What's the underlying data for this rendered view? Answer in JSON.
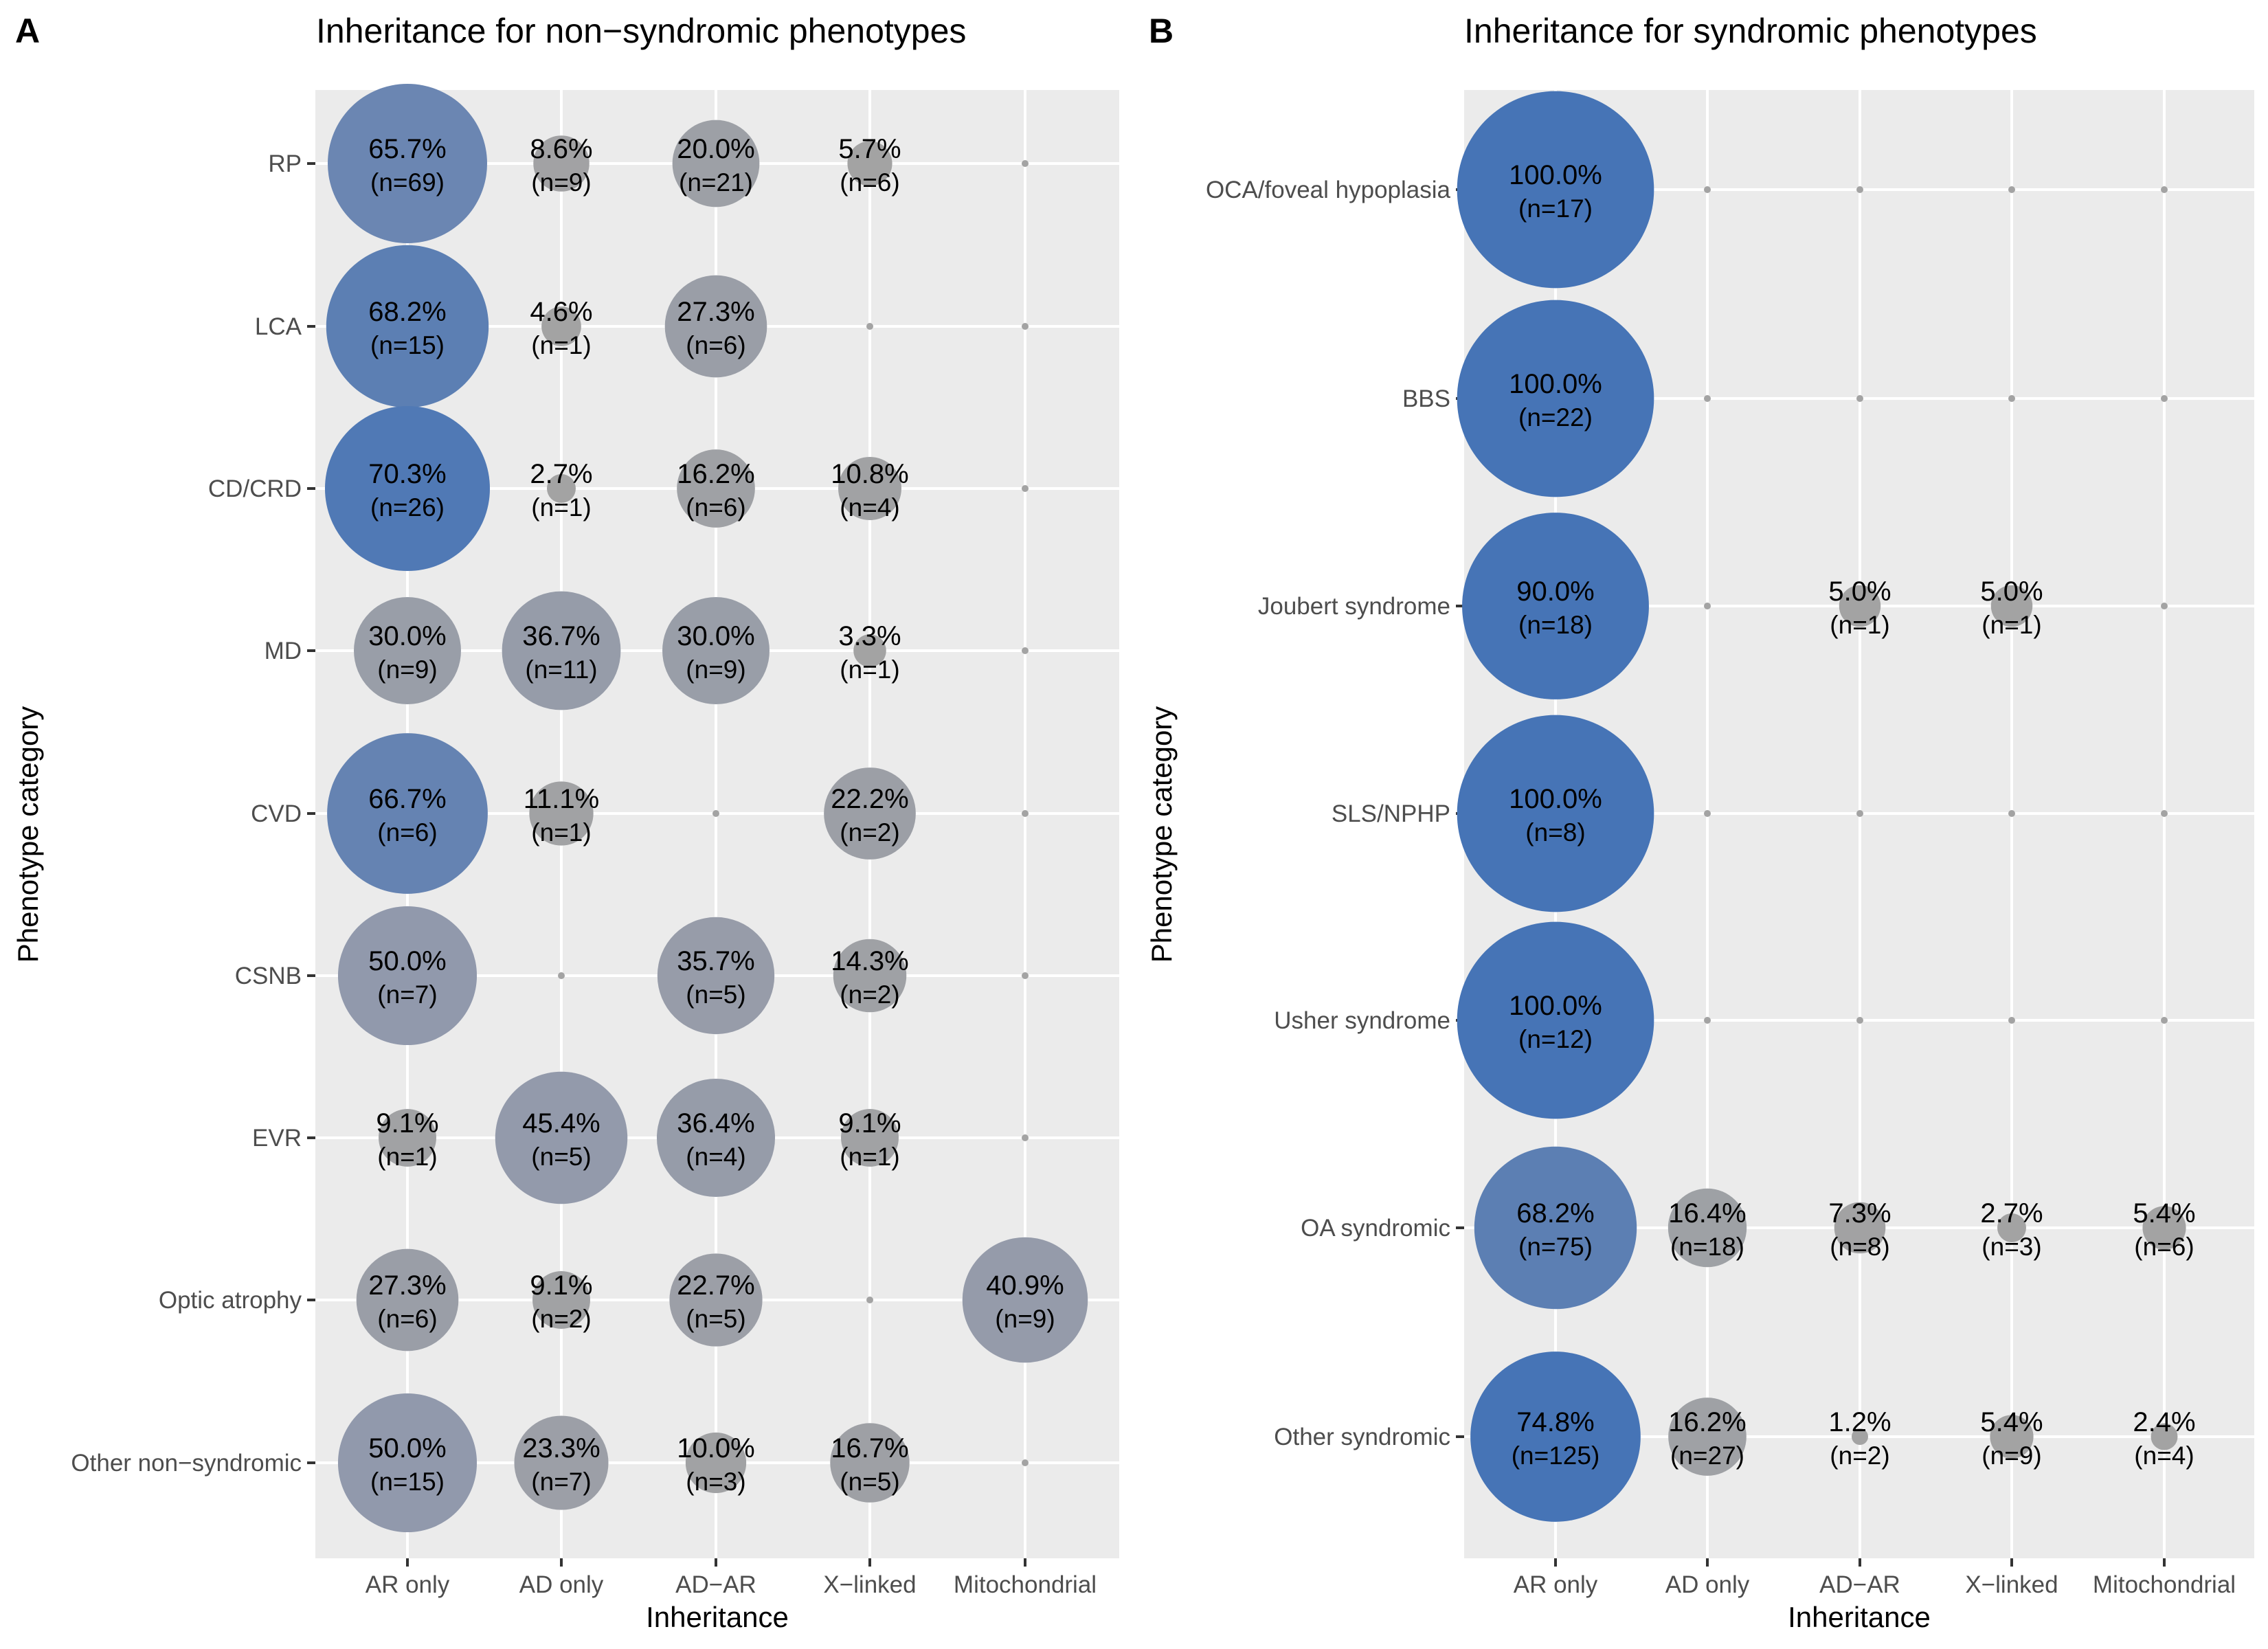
{
  "chart_data": [
    {
      "type": "scatter",
      "subtype": "bubble",
      "tag": "A",
      "title": "Inheritance for non−syndromic phenotypes",
      "xlabel": "Inheritance",
      "ylabel": "Phenotype category",
      "grid": true,
      "categories_x": [
        "AR only",
        "AD only",
        "AD−AR",
        "X−linked",
        "Mitochondrial"
      ],
      "categories_y": [
        "RP",
        "LCA",
        "CD/CRD",
        "MD",
        "CVD",
        "CSNB",
        "EVR",
        "Optic atrophy",
        "Other non−syndromic"
      ],
      "points": [
        {
          "y": "RP",
          "x": "AR only",
          "pct": 65.7,
          "n": 69
        },
        {
          "y": "RP",
          "x": "AD only",
          "pct": 8.6,
          "n": 9
        },
        {
          "y": "RP",
          "x": "AD−AR",
          "pct": 20.0,
          "n": 21
        },
        {
          "y": "RP",
          "x": "X−linked",
          "pct": 5.7,
          "n": 6
        },
        {
          "y": "RP",
          "x": "Mitochondrial",
          "pct": 0,
          "n": 0
        },
        {
          "y": "LCA",
          "x": "AR only",
          "pct": 68.2,
          "n": 15
        },
        {
          "y": "LCA",
          "x": "AD only",
          "pct": 4.6,
          "n": 1
        },
        {
          "y": "LCA",
          "x": "AD−AR",
          "pct": 27.3,
          "n": 6
        },
        {
          "y": "LCA",
          "x": "X−linked",
          "pct": 0,
          "n": 0
        },
        {
          "y": "LCA",
          "x": "Mitochondrial",
          "pct": 0,
          "n": 0
        },
        {
          "y": "CD/CRD",
          "x": "AR only",
          "pct": 70.3,
          "n": 26
        },
        {
          "y": "CD/CRD",
          "x": "AD only",
          "pct": 2.7,
          "n": 1
        },
        {
          "y": "CD/CRD",
          "x": "AD−AR",
          "pct": 16.2,
          "n": 6
        },
        {
          "y": "CD/CRD",
          "x": "X−linked",
          "pct": 10.8,
          "n": 4
        },
        {
          "y": "CD/CRD",
          "x": "Mitochondrial",
          "pct": 0,
          "n": 0
        },
        {
          "y": "MD",
          "x": "AR only",
          "pct": 30.0,
          "n": 9
        },
        {
          "y": "MD",
          "x": "AD only",
          "pct": 36.7,
          "n": 11
        },
        {
          "y": "MD",
          "x": "AD−AR",
          "pct": 30.0,
          "n": 9
        },
        {
          "y": "MD",
          "x": "X−linked",
          "pct": 3.3,
          "n": 1
        },
        {
          "y": "MD",
          "x": "Mitochondrial",
          "pct": 0,
          "n": 0
        },
        {
          "y": "CVD",
          "x": "AR only",
          "pct": 66.7,
          "n": 6
        },
        {
          "y": "CVD",
          "x": "AD only",
          "pct": 11.1,
          "n": 1
        },
        {
          "y": "CVD",
          "x": "AD−AR",
          "pct": 0,
          "n": 0
        },
        {
          "y": "CVD",
          "x": "X−linked",
          "pct": 22.2,
          "n": 2
        },
        {
          "y": "CVD",
          "x": "Mitochondrial",
          "pct": 0,
          "n": 0
        },
        {
          "y": "CSNB",
          "x": "AR only",
          "pct": 50.0,
          "n": 7
        },
        {
          "y": "CSNB",
          "x": "AD only",
          "pct": 0,
          "n": 0
        },
        {
          "y": "CSNB",
          "x": "AD−AR",
          "pct": 35.7,
          "n": 5
        },
        {
          "y": "CSNB",
          "x": "X−linked",
          "pct": 14.3,
          "n": 2
        },
        {
          "y": "CSNB",
          "x": "Mitochondrial",
          "pct": 0,
          "n": 0
        },
        {
          "y": "EVR",
          "x": "AR only",
          "pct": 9.1,
          "n": 1
        },
        {
          "y": "EVR",
          "x": "AD only",
          "pct": 45.4,
          "n": 5
        },
        {
          "y": "EVR",
          "x": "AD−AR",
          "pct": 36.4,
          "n": 4
        },
        {
          "y": "EVR",
          "x": "X−linked",
          "pct": 9.1,
          "n": 1
        },
        {
          "y": "EVR",
          "x": "Mitochondrial",
          "pct": 0,
          "n": 0
        },
        {
          "y": "Optic atrophy",
          "x": "AR only",
          "pct": 27.3,
          "n": 6
        },
        {
          "y": "Optic atrophy",
          "x": "AD only",
          "pct": 9.1,
          "n": 2
        },
        {
          "y": "Optic atrophy",
          "x": "AD−AR",
          "pct": 22.7,
          "n": 5
        },
        {
          "y": "Optic atrophy",
          "x": "X−linked",
          "pct": 0,
          "n": 0
        },
        {
          "y": "Optic atrophy",
          "x": "Mitochondrial",
          "pct": 40.9,
          "n": 9
        },
        {
          "y": "Other non−syndromic",
          "x": "AR only",
          "pct": 50.0,
          "n": 15
        },
        {
          "y": "Other non−syndromic",
          "x": "AD only",
          "pct": 23.3,
          "n": 7
        },
        {
          "y": "Other non−syndromic",
          "x": "AD−AR",
          "pct": 10.0,
          "n": 3
        },
        {
          "y": "Other non−syndromic",
          "x": "X−linked",
          "pct": 16.7,
          "n": 5
        },
        {
          "y": "Other non−syndromic",
          "x": "Mitochondrial",
          "pct": 0,
          "n": 0
        }
      ]
    },
    {
      "type": "scatter",
      "subtype": "bubble",
      "tag": "B",
      "title": "Inheritance for syndromic phenotypes",
      "xlabel": "Inheritance",
      "ylabel": "Phenotype category",
      "grid": true,
      "categories_x": [
        "AR only",
        "AD only",
        "AD−AR",
        "X−linked",
        "Mitochondrial"
      ],
      "categories_y": [
        "OCA/foveal hypoplasia",
        "BBS",
        "Joubert syndrome",
        "SLS/NPHP",
        "Usher syndrome",
        "OA syndromic",
        "Other syndromic"
      ],
      "points": [
        {
          "y": "OCA/foveal hypoplasia",
          "x": "AR only",
          "pct": 100.0,
          "n": 17
        },
        {
          "y": "OCA/foveal hypoplasia",
          "x": "AD only",
          "pct": 0,
          "n": 0
        },
        {
          "y": "OCA/foveal hypoplasia",
          "x": "AD−AR",
          "pct": 0,
          "n": 0
        },
        {
          "y": "OCA/foveal hypoplasia",
          "x": "X−linked",
          "pct": 0,
          "n": 0
        },
        {
          "y": "OCA/foveal hypoplasia",
          "x": "Mitochondrial",
          "pct": 0,
          "n": 0
        },
        {
          "y": "BBS",
          "x": "AR only",
          "pct": 100.0,
          "n": 22
        },
        {
          "y": "BBS",
          "x": "AD only",
          "pct": 0,
          "n": 0
        },
        {
          "y": "BBS",
          "x": "AD−AR",
          "pct": 0,
          "n": 0
        },
        {
          "y": "BBS",
          "x": "X−linked",
          "pct": 0,
          "n": 0
        },
        {
          "y": "BBS",
          "x": "Mitochondrial",
          "pct": 0,
          "n": 0
        },
        {
          "y": "Joubert syndrome",
          "x": "AR only",
          "pct": 90.0,
          "n": 18
        },
        {
          "y": "Joubert syndrome",
          "x": "AD only",
          "pct": 0,
          "n": 0
        },
        {
          "y": "Joubert syndrome",
          "x": "AD−AR",
          "pct": 5.0,
          "n": 1
        },
        {
          "y": "Joubert syndrome",
          "x": "X−linked",
          "pct": 5.0,
          "n": 1
        },
        {
          "y": "Joubert syndrome",
          "x": "Mitochondrial",
          "pct": 0,
          "n": 0
        },
        {
          "y": "SLS/NPHP",
          "x": "AR only",
          "pct": 100.0,
          "n": 8
        },
        {
          "y": "SLS/NPHP",
          "x": "AD only",
          "pct": 0,
          "n": 0
        },
        {
          "y": "SLS/NPHP",
          "x": "AD−AR",
          "pct": 0,
          "n": 0
        },
        {
          "y": "SLS/NPHP",
          "x": "X−linked",
          "pct": 0,
          "n": 0
        },
        {
          "y": "SLS/NPHP",
          "x": "Mitochondrial",
          "pct": 0,
          "n": 0
        },
        {
          "y": "Usher syndrome",
          "x": "AR only",
          "pct": 100.0,
          "n": 12
        },
        {
          "y": "Usher syndrome",
          "x": "AD only",
          "pct": 0,
          "n": 0
        },
        {
          "y": "Usher syndrome",
          "x": "AD−AR",
          "pct": 0,
          "n": 0
        },
        {
          "y": "Usher syndrome",
          "x": "X−linked",
          "pct": 0,
          "n": 0
        },
        {
          "y": "Usher syndrome",
          "x": "Mitochondrial",
          "pct": 0,
          "n": 0
        },
        {
          "y": "OA syndromic",
          "x": "AR only",
          "pct": 68.2,
          "n": 75
        },
        {
          "y": "OA syndromic",
          "x": "AD only",
          "pct": 16.4,
          "n": 18
        },
        {
          "y": "OA syndromic",
          "x": "AD−AR",
          "pct": 7.3,
          "n": 8
        },
        {
          "y": "OA syndromic",
          "x": "X−linked",
          "pct": 2.7,
          "n": 3
        },
        {
          "y": "OA syndromic",
          "x": "Mitochondrial",
          "pct": 5.4,
          "n": 6
        },
        {
          "y": "Other syndromic",
          "x": "AR only",
          "pct": 74.8,
          "n": 125
        },
        {
          "y": "Other syndromic",
          "x": "AD only",
          "pct": 16.2,
          "n": 27
        },
        {
          "y": "Other syndromic",
          "x": "AD−AR",
          "pct": 1.2,
          "n": 2
        },
        {
          "y": "Other syndromic",
          "x": "X−linked",
          "pct": 5.4,
          "n": 9
        },
        {
          "y": "Other syndromic",
          "x": "Mitochondrial",
          "pct": 2.4,
          "n": 4
        }
      ]
    }
  ],
  "colors": {
    "panel_background": "#EBEBEB",
    "grid": "#FFFFFF",
    "bubble_low": "#A3A3A3",
    "bubble_mid": "#8D97AE",
    "bubble_high": "#4674B6",
    "tick_label": "#4D4D4D"
  }
}
